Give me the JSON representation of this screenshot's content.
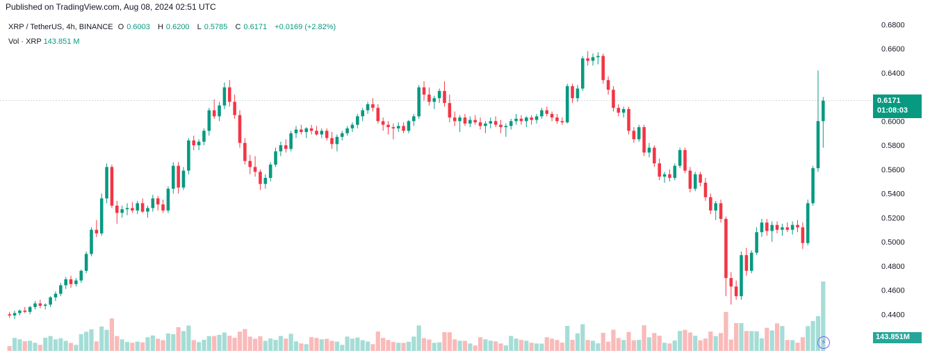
{
  "header": {
    "published": "Published on TradingView.com, Aug 08, 2024 02:51 UTC"
  },
  "legend": {
    "symbol": "XRP / TetherUS, 4h, BINANCE",
    "open_label": "O",
    "open": "0.6003",
    "high_label": "H",
    "high": "0.6200",
    "low_label": "L",
    "low": "0.5785",
    "close_label": "C",
    "close": "0.6171",
    "change": "+0.0169 (+2.82%)",
    "volume_label": "Vol · XRP",
    "volume": "143.851 M"
  },
  "badges": {
    "last_price": "0.6171",
    "countdown": "01:08:03",
    "last_volume": "143.851M",
    "bolt_icon": "⚡"
  },
  "colors": {
    "up": "#089981",
    "down": "#f23645",
    "up_vol": "#8fd4cc",
    "down_vol": "#f7a9a7"
  },
  "chart_data": {
    "type": "candlestick",
    "title": "XRP / TetherUS, 4h, BINANCE",
    "y_axis_side": "right",
    "ylim": [
      0.42,
      0.69
    ],
    "y_ticks": [
      "0.4400",
      "0.4600",
      "0.4800",
      "0.5000",
      "0.5200",
      "0.5400",
      "0.5600",
      "0.5800",
      "0.6000",
      "0.6400",
      "0.6600",
      "0.6800"
    ],
    "last_price": 0.6171,
    "candles": [
      [
        0.44,
        0.442,
        0.437,
        0.439
      ],
      [
        0.439,
        0.443,
        0.436,
        0.441
      ],
      [
        0.441,
        0.444,
        0.439,
        0.443
      ],
      [
        0.443,
        0.446,
        0.441,
        0.442
      ],
      [
        0.442,
        0.447,
        0.44,
        0.446
      ],
      [
        0.446,
        0.451,
        0.444,
        0.449
      ],
      [
        0.449,
        0.452,
        0.445,
        0.447
      ],
      [
        0.447,
        0.449,
        0.444,
        0.448
      ],
      [
        0.448,
        0.455,
        0.446,
        0.454
      ],
      [
        0.454,
        0.459,
        0.451,
        0.457
      ],
      [
        0.457,
        0.466,
        0.455,
        0.464
      ],
      [
        0.464,
        0.471,
        0.461,
        0.469
      ],
      [
        0.469,
        0.472,
        0.462,
        0.465
      ],
      [
        0.465,
        0.47,
        0.463,
        0.468
      ],
      [
        0.468,
        0.477,
        0.466,
        0.476
      ],
      [
        0.476,
        0.492,
        0.474,
        0.49
      ],
      [
        0.49,
        0.512,
        0.488,
        0.51
      ],
      [
        0.51,
        0.518,
        0.504,
        0.507
      ],
      [
        0.507,
        0.54,
        0.505,
        0.536
      ],
      [
        0.536,
        0.565,
        0.532,
        0.562
      ],
      [
        0.562,
        0.564,
        0.528,
        0.53
      ],
      [
        0.53,
        0.534,
        0.515,
        0.524
      ],
      [
        0.524,
        0.53,
        0.52,
        0.527
      ],
      [
        0.527,
        0.532,
        0.522,
        0.528
      ],
      [
        0.528,
        0.533,
        0.524,
        0.526
      ],
      [
        0.526,
        0.534,
        0.523,
        0.532
      ],
      [
        0.532,
        0.536,
        0.524,
        0.525
      ],
      [
        0.525,
        0.53,
        0.52,
        0.528
      ],
      [
        0.528,
        0.539,
        0.525,
        0.536
      ],
      [
        0.536,
        0.538,
        0.526,
        0.531
      ],
      [
        0.531,
        0.535,
        0.524,
        0.526
      ],
      [
        0.526,
        0.546,
        0.524,
        0.544
      ],
      [
        0.544,
        0.566,
        0.54,
        0.563
      ],
      [
        0.563,
        0.566,
        0.54,
        0.545
      ],
      [
        0.545,
        0.562,
        0.543,
        0.559
      ],
      [
        0.559,
        0.586,
        0.556,
        0.584
      ],
      [
        0.584,
        0.588,
        0.576,
        0.58
      ],
      [
        0.58,
        0.585,
        0.576,
        0.583
      ],
      [
        0.583,
        0.594,
        0.58,
        0.592
      ],
      [
        0.592,
        0.611,
        0.588,
        0.609
      ],
      [
        0.609,
        0.618,
        0.602,
        0.604
      ],
      [
        0.604,
        0.616,
        0.6,
        0.613
      ],
      [
        0.613,
        0.632,
        0.61,
        0.628
      ],
      [
        0.628,
        0.634,
        0.612,
        0.616
      ],
      [
        0.616,
        0.622,
        0.602,
        0.605
      ],
      [
        0.605,
        0.609,
        0.578,
        0.582
      ],
      [
        0.582,
        0.586,
        0.564,
        0.567
      ],
      [
        0.567,
        0.572,
        0.556,
        0.562
      ],
      [
        0.562,
        0.571,
        0.554,
        0.558
      ],
      [
        0.558,
        0.56,
        0.543,
        0.548
      ],
      [
        0.548,
        0.556,
        0.544,
        0.553
      ],
      [
        0.553,
        0.566,
        0.55,
        0.564
      ],
      [
        0.564,
        0.578,
        0.562,
        0.575
      ],
      [
        0.575,
        0.583,
        0.571,
        0.58
      ],
      [
        0.58,
        0.585,
        0.574,
        0.577
      ],
      [
        0.577,
        0.592,
        0.575,
        0.59
      ],
      [
        0.59,
        0.596,
        0.586,
        0.593
      ],
      [
        0.593,
        0.597,
        0.589,
        0.591
      ],
      [
        0.591,
        0.595,
        0.586,
        0.594
      ],
      [
        0.594,
        0.597,
        0.589,
        0.592
      ],
      [
        0.592,
        0.596,
        0.588,
        0.589
      ],
      [
        0.589,
        0.594,
        0.586,
        0.592
      ],
      [
        0.592,
        0.594,
        0.584,
        0.586
      ],
      [
        0.586,
        0.591,
        0.577,
        0.581
      ],
      [
        0.581,
        0.589,
        0.575,
        0.587
      ],
      [
        0.587,
        0.592,
        0.584,
        0.59
      ],
      [
        0.59,
        0.596,
        0.588,
        0.594
      ],
      [
        0.594,
        0.599,
        0.591,
        0.597
      ],
      [
        0.597,
        0.606,
        0.594,
        0.604
      ],
      [
        0.604,
        0.611,
        0.6,
        0.609
      ],
      [
        0.609,
        0.616,
        0.606,
        0.614
      ],
      [
        0.614,
        0.619,
        0.608,
        0.611
      ],
      [
        0.611,
        0.614,
        0.598,
        0.6
      ],
      [
        0.6,
        0.603,
        0.592,
        0.597
      ],
      [
        0.597,
        0.6,
        0.589,
        0.595
      ],
      [
        0.595,
        0.598,
        0.585,
        0.594
      ],
      [
        0.594,
        0.599,
        0.591,
        0.596
      ],
      [
        0.596,
        0.599,
        0.59,
        0.592
      ],
      [
        0.592,
        0.601,
        0.59,
        0.6
      ],
      [
        0.6,
        0.606,
        0.596,
        0.604
      ],
      [
        0.604,
        0.63,
        0.602,
        0.628
      ],
      [
        0.628,
        0.633,
        0.617,
        0.622
      ],
      [
        0.622,
        0.628,
        0.613,
        0.616
      ],
      [
        0.616,
        0.621,
        0.61,
        0.619
      ],
      [
        0.619,
        0.627,
        0.615,
        0.625
      ],
      [
        0.625,
        0.633,
        0.612,
        0.615
      ],
      [
        0.615,
        0.622,
        0.599,
        0.603
      ],
      [
        0.603,
        0.608,
        0.596,
        0.6
      ],
      [
        0.6,
        0.605,
        0.591,
        0.603
      ],
      [
        0.603,
        0.606,
        0.596,
        0.598
      ],
      [
        0.598,
        0.604,
        0.595,
        0.601
      ],
      [
        0.601,
        0.605,
        0.597,
        0.599
      ],
      [
        0.599,
        0.603,
        0.593,
        0.596
      ],
      [
        0.596,
        0.6,
        0.59,
        0.598
      ],
      [
        0.598,
        0.603,
        0.594,
        0.6
      ],
      [
        0.6,
        0.604,
        0.595,
        0.597
      ],
      [
        0.597,
        0.601,
        0.59,
        0.595
      ],
      [
        0.595,
        0.598,
        0.587,
        0.596
      ],
      [
        0.596,
        0.602,
        0.593,
        0.6
      ],
      [
        0.6,
        0.606,
        0.597,
        0.602
      ],
      [
        0.602,
        0.605,
        0.597,
        0.6
      ],
      [
        0.6,
        0.604,
        0.595,
        0.603
      ],
      [
        0.603,
        0.605,
        0.597,
        0.601
      ],
      [
        0.601,
        0.606,
        0.598,
        0.604
      ],
      [
        0.604,
        0.611,
        0.602,
        0.609
      ],
      [
        0.609,
        0.612,
        0.604,
        0.606
      ],
      [
        0.606,
        0.608,
        0.6,
        0.603
      ],
      [
        0.603,
        0.606,
        0.598,
        0.6
      ],
      [
        0.6,
        0.603,
        0.597,
        0.599
      ],
      [
        0.599,
        0.631,
        0.598,
        0.629
      ],
      [
        0.629,
        0.631,
        0.615,
        0.619
      ],
      [
        0.619,
        0.63,
        0.616,
        0.627
      ],
      [
        0.627,
        0.654,
        0.625,
        0.652
      ],
      [
        0.652,
        0.658,
        0.646,
        0.65
      ],
      [
        0.65,
        0.656,
        0.646,
        0.653
      ],
      [
        0.653,
        0.657,
        0.647,
        0.654
      ],
      [
        0.654,
        0.656,
        0.631,
        0.634
      ],
      [
        0.634,
        0.637,
        0.622,
        0.626
      ],
      [
        0.626,
        0.629,
        0.608,
        0.611
      ],
      [
        0.611,
        0.614,
        0.604,
        0.607
      ],
      [
        0.607,
        0.612,
        0.603,
        0.61
      ],
      [
        0.61,
        0.612,
        0.589,
        0.592
      ],
      [
        0.592,
        0.595,
        0.582,
        0.585
      ],
      [
        0.585,
        0.597,
        0.583,
        0.595
      ],
      [
        0.595,
        0.597,
        0.571,
        0.574
      ],
      [
        0.574,
        0.582,
        0.57,
        0.578
      ],
      [
        0.578,
        0.58,
        0.562,
        0.565
      ],
      [
        0.565,
        0.569,
        0.551,
        0.554
      ],
      [
        0.554,
        0.558,
        0.549,
        0.556
      ],
      [
        0.556,
        0.56,
        0.55,
        0.553
      ],
      [
        0.553,
        0.565,
        0.551,
        0.563
      ],
      [
        0.563,
        0.578,
        0.561,
        0.576
      ],
      [
        0.576,
        0.578,
        0.557,
        0.559
      ],
      [
        0.559,
        0.562,
        0.541,
        0.544
      ],
      [
        0.544,
        0.558,
        0.542,
        0.556
      ],
      [
        0.556,
        0.558,
        0.546,
        0.549
      ],
      [
        0.549,
        0.553,
        0.534,
        0.537
      ],
      [
        0.537,
        0.54,
        0.523,
        0.526
      ],
      [
        0.526,
        0.534,
        0.518,
        0.532
      ],
      [
        0.532,
        0.535,
        0.516,
        0.519
      ],
      [
        0.519,
        0.521,
        0.455,
        0.47
      ],
      [
        0.47,
        0.475,
        0.448,
        0.463
      ],
      [
        0.463,
        0.468,
        0.452,
        0.455
      ],
      [
        0.455,
        0.492,
        0.452,
        0.489
      ],
      [
        0.489,
        0.495,
        0.472,
        0.476
      ],
      [
        0.476,
        0.493,
        0.474,
        0.491
      ],
      [
        0.491,
        0.512,
        0.489,
        0.508
      ],
      [
        0.508,
        0.519,
        0.504,
        0.516
      ],
      [
        0.516,
        0.519,
        0.505,
        0.509
      ],
      [
        0.509,
        0.517,
        0.5,
        0.514
      ],
      [
        0.514,
        0.517,
        0.507,
        0.51
      ],
      [
        0.51,
        0.515,
        0.505,
        0.512
      ],
      [
        0.512,
        0.516,
        0.508,
        0.51
      ],
      [
        0.51,
        0.517,
        0.506,
        0.514
      ],
      [
        0.514,
        0.518,
        0.508,
        0.512
      ],
      [
        0.512,
        0.516,
        0.494,
        0.499
      ],
      [
        0.499,
        0.535,
        0.497,
        0.532
      ],
      [
        0.532,
        0.563,
        0.53,
        0.561
      ],
      [
        0.561,
        0.642,
        0.558,
        0.6
      ],
      [
        0.6,
        0.62,
        0.578,
        0.617
      ]
    ]
  }
}
